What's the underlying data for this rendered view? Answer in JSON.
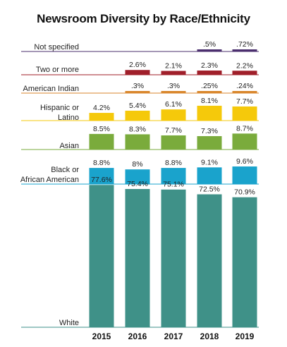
{
  "chart_data": {
    "type": "bar",
    "title": "Newsroom Diversity by Race/Ethnicity",
    "categories": [
      "2015",
      "2016",
      "2017",
      "2018",
      "2019"
    ],
    "series": [
      {
        "name": "Not specified",
        "color": "#4b2f6e",
        "values": [
          null,
          null,
          null,
          0.5,
          0.72
        ],
        "labels": [
          "",
          "",
          "",
          ".5%",
          ".72%"
        ]
      },
      {
        "name": "Two or more",
        "color": "#a01f2a",
        "values": [
          null,
          2.6,
          2.1,
          2.3,
          2.2
        ],
        "labels": [
          "",
          "2.6%",
          "2.1%",
          "2.3%",
          "2.2%"
        ]
      },
      {
        "name": "American Indian",
        "color": "#d9862b",
        "values": [
          null,
          0.3,
          0.3,
          0.25,
          0.24
        ],
        "labels": [
          "",
          ".3%",
          ".3%",
          ".25%",
          ".24%"
        ]
      },
      {
        "name": "Hispanic or Latino",
        "color": "#f5c90b",
        "values": [
          4.2,
          5.4,
          6.1,
          8.1,
          7.7
        ],
        "labels": [
          "4.2%",
          "5.4%",
          "6.1%",
          "8.1%",
          "7.7%"
        ]
      },
      {
        "name": "Asian",
        "color": "#7aab3c",
        "values": [
          8.5,
          8.3,
          7.7,
          7.3,
          8.7
        ],
        "labels": [
          "8.5%",
          "8.3%",
          "7.7%",
          "7.3%",
          "8.7%"
        ]
      },
      {
        "name": "Black or African American",
        "color": "#1aa3cc",
        "values": [
          8.8,
          8.0,
          8.8,
          9.1,
          9.6
        ],
        "labels": [
          "8.8%",
          "8%",
          "8.8%",
          "9.1%",
          "9.6%"
        ]
      },
      {
        "name": "White",
        "color": "#3f9188",
        "values": [
          77.6,
          75.4,
          75.1,
          72.5,
          70.9
        ],
        "labels": [
          "77.6%",
          "75.4%",
          "75.1%",
          "72.5%",
          "70.9%"
        ]
      }
    ],
    "xlabel": "",
    "ylabel": "",
    "grid": false,
    "legend": "row labels at left"
  }
}
